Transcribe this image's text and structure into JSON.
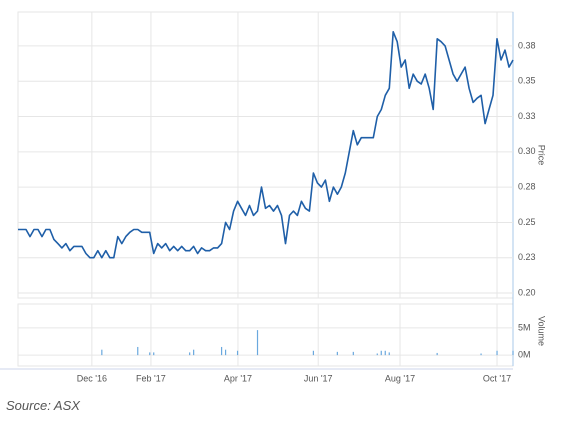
{
  "chart_data": [
    {
      "type": "line",
      "y_label": "Price",
      "grid": true,
      "series": [
        {
          "name": "Price",
          "color": "#1f5fa8",
          "values": [
            0.245,
            0.245,
            0.245,
            0.24,
            0.245,
            0.245,
            0.24,
            0.245,
            0.245,
            0.238,
            0.235,
            0.232,
            0.235,
            0.23,
            0.233,
            0.233,
            0.233,
            0.228,
            0.225,
            0.225,
            0.23,
            0.225,
            0.23,
            0.225,
            0.225,
            0.24,
            0.235,
            0.24,
            0.243,
            0.245,
            0.245,
            0.243,
            0.243,
            0.243,
            0.228,
            0.235,
            0.232,
            0.235,
            0.23,
            0.233,
            0.23,
            0.233,
            0.23,
            0.23,
            0.233,
            0.228,
            0.232,
            0.23,
            0.23,
            0.232,
            0.232,
            0.235,
            0.25,
            0.245,
            0.258,
            0.265,
            0.26,
            0.255,
            0.262,
            0.255,
            0.258,
            0.275,
            0.26,
            0.262,
            0.258,
            0.262,
            0.255,
            0.235,
            0.255,
            0.258,
            0.255,
            0.265,
            0.26,
            0.258,
            0.285,
            0.278,
            0.275,
            0.28,
            0.265,
            0.275,
            0.27,
            0.275,
            0.285,
            0.3,
            0.315,
            0.305,
            0.31,
            0.31,
            0.31,
            0.31,
            0.325,
            0.33,
            0.34,
            0.345,
            0.385,
            0.378,
            0.36,
            0.365,
            0.345,
            0.355,
            0.35,
            0.348,
            0.355,
            0.345,
            0.33,
            0.38,
            0.378,
            0.375,
            0.365,
            0.355,
            0.35,
            0.355,
            0.36,
            0.345,
            0.335,
            0.338,
            0.34,
            0.32,
            0.33,
            0.34,
            0.38,
            0.365,
            0.372,
            0.36,
            0.365
          ]
        }
      ],
      "xlim": [
        0,
        124
      ],
      "ylim": [
        0.1965,
        0.399
      ],
      "yticks": [
        {
          "value": 0.2,
          "label": "0.20"
        },
        {
          "value": 0.225,
          "label": "0.23"
        },
        {
          "value": 0.25,
          "label": "0.25"
        },
        {
          "value": 0.275,
          "label": "0.28"
        },
        {
          "value": 0.3,
          "label": "0.30"
        },
        {
          "value": 0.325,
          "label": "0.33"
        },
        {
          "value": 0.35,
          "label": "0.35"
        },
        {
          "value": 0.375,
          "label": "0.38"
        }
      ]
    },
    {
      "type": "bar",
      "y_label": "Volume",
      "grid": true,
      "series": [
        {
          "name": "Volume",
          "color": "#6aa8de",
          "values": [
            0,
            0,
            0,
            0,
            0,
            0,
            0,
            0,
            0,
            0,
            0,
            0,
            0,
            0,
            0,
            0,
            0,
            0,
            0,
            0,
            0,
            1.0,
            0,
            0,
            0,
            0,
            0,
            0,
            0,
            0,
            1.5,
            0,
            0,
            0.5,
            0.5,
            0,
            0,
            0,
            0,
            0,
            0,
            0,
            0,
            0.5,
            1.0,
            0,
            0,
            0,
            0,
            0,
            0,
            1.5,
            1.0,
            0,
            0,
            0.8,
            0,
            0,
            0,
            0,
            4.6,
            0,
            0,
            0,
            0,
            0,
            0,
            0,
            0,
            0,
            0,
            0,
            0,
            0,
            0.8,
            0,
            0,
            0,
            0,
            0,
            0.6,
            0,
            0,
            0,
            0.6,
            0,
            0,
            0,
            0,
            0,
            0.3,
            0.8,
            0.8,
            0.5,
            0,
            0,
            0,
            0,
            0,
            0,
            0,
            0,
            0,
            0,
            0,
            0.4,
            0,
            0,
            0,
            0,
            0,
            0,
            0,
            0,
            0,
            0,
            0.3,
            0,
            0,
            0,
            0.8,
            0,
            0,
            0,
            0.8
          ]
        }
      ],
      "xlim": [
        0,
        124
      ],
      "ylim": [
        -2,
        9.4
      ],
      "yticks": [
        {
          "value": 0,
          "label": "0M"
        },
        {
          "value": 5,
          "label": "5M"
        }
      ],
      "xticks": [
        {
          "value": 18.5,
          "label": "Dec '16"
        },
        {
          "value": 33.3,
          "label": "Feb '17"
        },
        {
          "value": 55.1,
          "label": "Apr '17"
        },
        {
          "value": 75.2,
          "label": "Jun '17"
        },
        {
          "value": 95.7,
          "label": "Aug '17"
        },
        {
          "value": 120,
          "label": "Oct '17"
        }
      ]
    }
  ],
  "source": "Source: ASX"
}
